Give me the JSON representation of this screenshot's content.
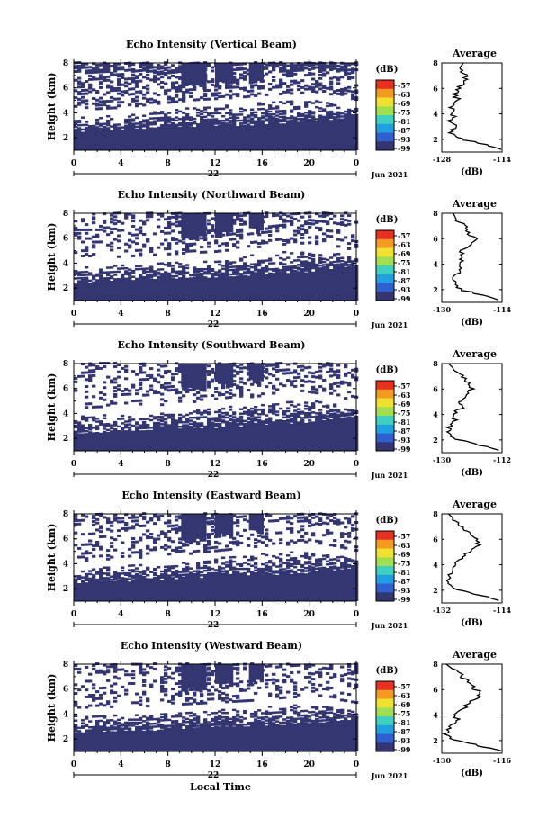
{
  "chart_data": [
    {
      "type": "heatmap",
      "title": "Echo Intensity (Vertical Beam)",
      "ylabel": "Height (km)",
      "y_ticks": [
        "8",
        "6",
        "4",
        "2"
      ],
      "x_ticks": [
        "0",
        "4",
        "8",
        "12",
        "16",
        "20",
        "0"
      ],
      "date_day": "22",
      "date_label": "Jun 2021",
      "xlim": [
        0,
        24
      ],
      "ylim": [
        1,
        8
      ],
      "colorbar": {
        "unit": "(dB)",
        "labels": [
          "-57",
          "-63",
          "-69",
          "-75",
          "-81",
          "-87",
          "-93",
          "-99"
        ]
      },
      "mid_boundary_km": [
        3.6,
        3.7,
        3.8,
        4.0,
        4.2,
        4.4,
        4.5,
        4.6,
        4.8,
        4.9,
        5.0,
        4.7,
        4.3
      ],
      "low_boundary_km": [
        2.6,
        2.7,
        2.8,
        2.9,
        3.0,
        3.0,
        3.1,
        3.1,
        3.2,
        3.3,
        3.4,
        3.6,
        3.8
      ],
      "average_profile": {
        "title": "Average",
        "xlabel": "(dB)",
        "x_ticks": [
          "-128",
          "-114"
        ],
        "y_ticks": [
          "8",
          "6",
          "4",
          "2"
        ],
        "xlim": [
          -128,
          -114
        ],
        "height_km": [
          8.0,
          7.5,
          7.0,
          6.5,
          6.0,
          5.5,
          5.0,
          4.5,
          4.0,
          3.5,
          3.0,
          2.5,
          2.0,
          1.5,
          1.2
        ],
        "value_db": [
          -123,
          -124,
          -122,
          -123,
          -124,
          -125,
          -124,
          -126,
          -125,
          -126,
          -125,
          -126,
          -123,
          -117,
          -114
        ]
      }
    },
    {
      "type": "heatmap",
      "title": "Echo Intensity (Northward Beam)",
      "ylabel": "Height (km)",
      "y_ticks": [
        "8",
        "6",
        "4",
        "2"
      ],
      "x_ticks": [
        "0",
        "4",
        "8",
        "12",
        "16",
        "20",
        "0"
      ],
      "date_day": "22",
      "date_label": "Jun 2021",
      "xlim": [
        0,
        24
      ],
      "ylim": [
        1,
        8
      ],
      "colorbar": {
        "unit": "(dB)",
        "labels": [
          "-57",
          "-63",
          "-69",
          "-75",
          "-81",
          "-87",
          "-93",
          "-99"
        ]
      },
      "mid_boundary_km": [
        3.8,
        3.8,
        3.9,
        4.0,
        4.1,
        4.2,
        4.3,
        4.5,
        4.7,
        4.9,
        5.0,
        4.8,
        4.4
      ],
      "low_boundary_km": [
        2.5,
        2.6,
        2.7,
        2.8,
        2.9,
        3.0,
        3.0,
        3.1,
        3.2,
        3.3,
        3.4,
        3.7,
        3.9
      ],
      "average_profile": {
        "title": "Average",
        "xlabel": "(dB)",
        "x_ticks": [
          "-130",
          "-114"
        ],
        "y_ticks": [
          "8",
          "6",
          "4",
          "2"
        ],
        "xlim": [
          -130,
          -114
        ],
        "height_km": [
          8.0,
          7.5,
          7.0,
          6.5,
          6.0,
          5.5,
          5.0,
          4.5,
          4.0,
          3.5,
          3.0,
          2.5,
          2.0,
          1.5,
          1.2
        ],
        "value_db": [
          -127,
          -126,
          -124,
          -123,
          -121,
          -122,
          -125,
          -124,
          -126,
          -125,
          -127,
          -127,
          -125,
          -118,
          -115
        ]
      }
    },
    {
      "type": "heatmap",
      "title": "Echo Intensity (Southward Beam)",
      "ylabel": "Height (km)",
      "y_ticks": [
        "8",
        "6",
        "4",
        "2"
      ],
      "x_ticks": [
        "0",
        "4",
        "8",
        "12",
        "16",
        "20",
        "0"
      ],
      "date_day": "22",
      "date_label": "Jun 2021",
      "xlim": [
        0,
        24
      ],
      "ylim": [
        1,
        8
      ],
      "colorbar": {
        "unit": "(dB)",
        "labels": [
          "-57",
          "-63",
          "-69",
          "-75",
          "-81",
          "-87",
          "-93",
          "-99"
        ]
      },
      "mid_boundary_km": [
        3.8,
        3.9,
        3.9,
        4.0,
        4.1,
        4.3,
        4.4,
        4.6,
        4.8,
        4.9,
        5.1,
        4.8,
        4.4
      ],
      "low_boundary_km": [
        2.5,
        2.6,
        2.7,
        2.8,
        2.9,
        2.9,
        3.0,
        3.1,
        3.2,
        3.3,
        3.4,
        3.7,
        3.9
      ],
      "average_profile": {
        "title": "Average",
        "xlabel": "(dB)",
        "x_ticks": [
          "-130",
          "-112"
        ],
        "y_ticks": [
          "8",
          "6",
          "4",
          "2"
        ],
        "xlim": [
          -130,
          -112
        ],
        "height_km": [
          8.0,
          7.5,
          7.0,
          6.5,
          6.0,
          5.5,
          5.0,
          4.5,
          4.0,
          3.5,
          3.0,
          2.5,
          2.0,
          1.5,
          1.2
        ],
        "value_db": [
          -128,
          -126,
          -124,
          -122,
          -121,
          -123,
          -125,
          -124,
          -127,
          -126,
          -128,
          -128,
          -125,
          -117,
          -113
        ]
      }
    },
    {
      "type": "heatmap",
      "title": "Echo Intensity (Eastward Beam)",
      "ylabel": "Height (km)",
      "y_ticks": [
        "8",
        "6",
        "4",
        "2"
      ],
      "x_ticks": [
        "0",
        "4",
        "8",
        "12",
        "16",
        "20",
        "0"
      ],
      "date_day": "22",
      "date_label": "Jun 2021",
      "xlim": [
        0,
        24
      ],
      "ylim": [
        1,
        8
      ],
      "colorbar": {
        "unit": "(dB)",
        "labels": [
          "-57",
          "-63",
          "-69",
          "-75",
          "-81",
          "-87",
          "-93",
          "-99"
        ]
      },
      "mid_boundary_km": [
        3.6,
        3.7,
        3.8,
        3.9,
        4.0,
        4.2,
        4.4,
        4.6,
        4.8,
        4.9,
        5.0,
        4.7,
        4.3
      ],
      "low_boundary_km": [
        2.6,
        2.7,
        2.7,
        2.8,
        2.9,
        3.0,
        3.1,
        3.2,
        3.2,
        3.3,
        3.4,
        3.6,
        3.8
      ],
      "average_profile": {
        "title": "Average",
        "xlabel": "(dB)",
        "x_ticks": [
          "-132",
          "-114"
        ],
        "y_ticks": [
          "8",
          "6",
          "4",
          "2"
        ],
        "xlim": [
          -132,
          -114
        ],
        "height_km": [
          8.0,
          7.5,
          7.0,
          6.5,
          6.0,
          5.5,
          5.0,
          4.5,
          4.0,
          3.5,
          3.0,
          2.5,
          2.0,
          1.5,
          1.2
        ],
        "value_db": [
          -130,
          -128,
          -126,
          -124,
          -122,
          -121,
          -124,
          -126,
          -128,
          -129,
          -130,
          -130,
          -127,
          -119,
          -115
        ]
      }
    },
    {
      "type": "heatmap",
      "title": "Echo Intensity (Westward Beam)",
      "ylabel": "Height (km)",
      "y_ticks": [
        "8",
        "6",
        "4",
        "2"
      ],
      "x_ticks": [
        "0",
        "4",
        "8",
        "12",
        "16",
        "20",
        "0"
      ],
      "date_day": "22",
      "date_label": "Jun 2021",
      "xlabel": "Local Time",
      "xlim": [
        0,
        24
      ],
      "ylim": [
        1,
        8
      ],
      "colorbar": {
        "unit": "(dB)",
        "labels": [
          "-57",
          "-63",
          "-69",
          "-75",
          "-81",
          "-87",
          "-93",
          "-99"
        ]
      },
      "mid_boundary_km": [
        3.9,
        3.9,
        4.0,
        4.0,
        4.1,
        4.2,
        4.3,
        4.4,
        4.5,
        4.7,
        4.8,
        4.6,
        4.3
      ],
      "low_boundary_km": [
        2.6,
        2.7,
        2.8,
        2.8,
        2.9,
        3.0,
        3.1,
        3.1,
        3.2,
        3.3,
        3.4,
        3.5,
        3.7
      ],
      "average_profile": {
        "title": "Average",
        "xlabel": "(dB)",
        "x_ticks": [
          "-130",
          "-116"
        ],
        "y_ticks": [
          "8",
          "6",
          "4",
          "2"
        ],
        "xlim": [
          -130,
          -116
        ],
        "height_km": [
          8.0,
          7.5,
          7.0,
          6.5,
          6.0,
          5.5,
          5.0,
          4.5,
          4.0,
          3.5,
          3.0,
          2.5,
          2.0,
          1.5,
          1.2
        ],
        "value_db": [
          -129,
          -127,
          -125,
          -124,
          -122,
          -121,
          -124,
          -125,
          -127,
          -126,
          -128,
          -129,
          -127,
          -120,
          -116
        ]
      }
    }
  ],
  "colors": {
    "echo_fill": "#343672",
    "colormap": [
      "#e83020",
      "#f59a20",
      "#f0e030",
      "#a0e050",
      "#40d0c0",
      "#20a0e0",
      "#3060d0",
      "#343672"
    ]
  }
}
